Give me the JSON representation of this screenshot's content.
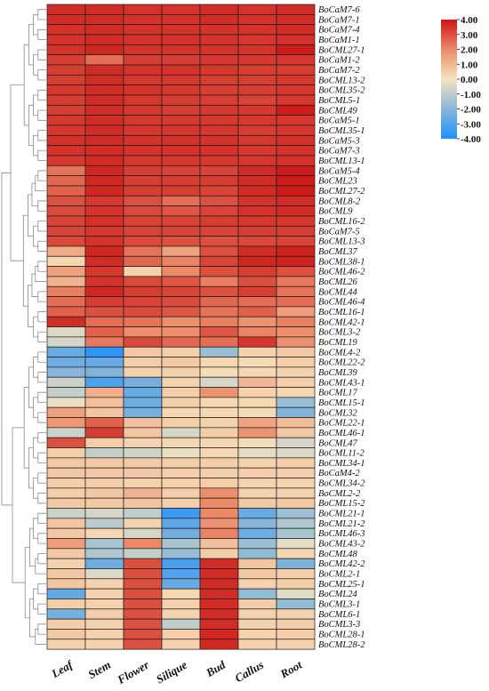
{
  "chart_data": {
    "type": "heatmap",
    "columns": [
      "Leaf",
      "Stem",
      "Flower",
      "Silique",
      "Bud",
      "Callus",
      "Root"
    ],
    "rows": [
      "BoCaM7-6",
      "BoCaM7-1",
      "BoCaM7-4",
      "BoCaM1-1",
      "BoCML27-1",
      "BoCaM1-2",
      "BoCaM7-2",
      "BoCML13-2",
      "BoCML35-2",
      "BoCML5-1",
      "BoCML49",
      "BoCaM5-1",
      "BoCML35-1",
      "BoCaM5-3",
      "BoCaM7-3",
      "BoCML13-1",
      "BoCaM5-4",
      "BoCML23",
      "BoCML27-2",
      "BoCML8-2",
      "BoCML9",
      "BoCML16-2",
      "BoCaM7-5",
      "BoCML13-3",
      "BoCML37",
      "BoCML38-1",
      "BoCML46-2",
      "BoCML26",
      "BoCML44",
      "BoCML46-4",
      "BoCML16-1",
      "BoCML42-1",
      "BoCML3-2",
      "BoCML19",
      "BoCML4-2",
      "BoCML22-2",
      "BoCML39",
      "BoCML43-1",
      "BoCML17",
      "BoCML15-1",
      "BoCML32",
      "BoCML22-1",
      "BoCML46-1",
      "BoCML47",
      "BoCML11-2",
      "BoCML34-1",
      "BoCaM4-2",
      "BoCML34-2",
      "BoCML2-2",
      "BoCML15-2",
      "BoCML21-1",
      "BoCML21-2",
      "BoCML46-3",
      "BoCML43-2",
      "BoCML48",
      "BoCML42-2",
      "BoCML2-1",
      "BoCML25-1",
      "BoCML24",
      "BoCML3-1",
      "BoCML6-1",
      "BoCML3-3",
      "BoCML28-1",
      "BoCML28-2"
    ],
    "values": [
      [
        3.6,
        3.6,
        3.5,
        3.5,
        3.6,
        3.5,
        3.6
      ],
      [
        3.6,
        3.6,
        3.5,
        3.5,
        3.6,
        3.5,
        3.6
      ],
      [
        3.5,
        3.6,
        3.5,
        3.5,
        3.5,
        3.5,
        3.6
      ],
      [
        3.5,
        3.6,
        3.5,
        3.5,
        3.5,
        3.4,
        3.5
      ],
      [
        3.5,
        3.7,
        3.5,
        3.5,
        3.5,
        3.5,
        3.9
      ],
      [
        3.3,
        2.5,
        3.3,
        3.3,
        3.4,
        3.4,
        3.4
      ],
      [
        3.3,
        3.6,
        3.5,
        3.5,
        3.4,
        3.3,
        3.3
      ],
      [
        3.3,
        3.6,
        3.4,
        3.4,
        3.3,
        3.3,
        3.4
      ],
      [
        3.4,
        3.6,
        3.5,
        3.4,
        3.3,
        3.3,
        3.4
      ],
      [
        3.3,
        3.6,
        3.4,
        3.3,
        3.3,
        3.2,
        3.4
      ],
      [
        3.3,
        3.6,
        3.4,
        3.3,
        3.4,
        3.4,
        3.9
      ],
      [
        3.4,
        3.6,
        3.4,
        3.4,
        3.4,
        3.4,
        3.4
      ],
      [
        3.4,
        3.6,
        3.4,
        3.4,
        3.4,
        3.3,
        3.4
      ],
      [
        3.5,
        3.6,
        3.5,
        3.5,
        3.5,
        3.4,
        3.5
      ],
      [
        3.5,
        3.6,
        3.5,
        3.5,
        3.5,
        3.4,
        3.5
      ],
      [
        3.4,
        3.6,
        3.4,
        3.4,
        3.4,
        3.4,
        3.5
      ],
      [
        2.4,
        3.7,
        3.3,
        3.2,
        3.2,
        3.6,
        3.9
      ],
      [
        2.6,
        3.7,
        3.3,
        3.3,
        3.3,
        3.6,
        3.9
      ],
      [
        2.7,
        3.7,
        3.3,
        3.3,
        3.2,
        3.6,
        3.9
      ],
      [
        3.0,
        3.4,
        3.0,
        2.5,
        3.0,
        3.5,
        3.6
      ],
      [
        3.1,
        3.5,
        3.1,
        2.9,
        3.2,
        3.5,
        3.6
      ],
      [
        3.2,
        3.5,
        3.2,
        3.2,
        3.3,
        3.4,
        3.4
      ],
      [
        3.2,
        3.4,
        3.2,
        3.2,
        3.2,
        3.3,
        3.3
      ],
      [
        3.1,
        3.5,
        3.1,
        3.0,
        3.0,
        3.1,
        3.2
      ],
      [
        1.3,
        3.7,
        2.4,
        1.5,
        3.0,
        3.6,
        3.8
      ],
      [
        0.3,
        3.6,
        2.6,
        2.1,
        3.2,
        3.7,
        3.8
      ],
      [
        1.5,
        3.4,
        0.4,
        2.0,
        3.0,
        3.3,
        3.0
      ],
      [
        1.1,
        3.5,
        3.1,
        2.9,
        2.2,
        3.0,
        2.3
      ],
      [
        2.2,
        3.7,
        3.3,
        3.2,
        3.0,
        3.3,
        2.4
      ],
      [
        2.5,
        3.3,
        3.2,
        3.1,
        2.6,
        2.5,
        2.5
      ],
      [
        2.7,
        3.0,
        3.1,
        2.9,
        2.4,
        2.7,
        1.6
      ],
      [
        3.6,
        2.5,
        2.4,
        1.9,
        2.2,
        1.8,
        2.2
      ],
      [
        -0.5,
        2.7,
        1.9,
        1.9,
        2.9,
        2.1,
        1.9
      ],
      [
        -0.6,
        2.3,
        3.1,
        2.6,
        2.5,
        3.4,
        1.9
      ],
      [
        -2.6,
        -3.7,
        0.6,
        0.5,
        -1.7,
        0.4,
        0.6
      ],
      [
        -2.5,
        -2.6,
        0.5,
        0.6,
        0.3,
        0.2,
        0.5
      ],
      [
        -2.0,
        -2.1,
        0.4,
        0.4,
        0.2,
        0.3,
        0.4
      ],
      [
        -0.8,
        -3.1,
        -2.3,
        0.4,
        -0.6,
        1.0,
        0.5
      ],
      [
        -0.9,
        1.2,
        -2.6,
        0.5,
        1.8,
        0.4,
        0.3
      ],
      [
        -0.2,
        0.8,
        -2.5,
        0.5,
        0.3,
        0.3,
        -1.7
      ],
      [
        1.5,
        0.7,
        -2.3,
        0.3,
        0.3,
        0.2,
        -2.1
      ],
      [
        1.7,
        2.7,
        0.8,
        0.5,
        0.4,
        1.4,
        0.9
      ],
      [
        -0.8,
        3.3,
        0.7,
        -0.6,
        0.5,
        1.8,
        0.6
      ],
      [
        3.0,
        0.5,
        0.4,
        0.3,
        0.3,
        0.2,
        -0.6
      ],
      [
        0.5,
        -0.9,
        -0.7,
        -0.2,
        0.3,
        -0.3,
        -0.5
      ],
      [
        0.6,
        0.6,
        0.6,
        0.5,
        0.5,
        0.4,
        0.5
      ],
      [
        0.6,
        0.6,
        0.6,
        0.5,
        0.5,
        0.5,
        0.5
      ],
      [
        0.5,
        0.5,
        0.4,
        0.4,
        0.5,
        0.4,
        0.4
      ],
      [
        0.5,
        0.6,
        1.1,
        0.5,
        1.9,
        0.4,
        0.4
      ],
      [
        0.6,
        0.6,
        0.7,
        0.5,
        2.0,
        0.6,
        0.6
      ],
      [
        -0.8,
        -0.6,
        -1.0,
        -3.4,
        2.0,
        -2.6,
        -1.6
      ],
      [
        0.7,
        -1.1,
        0.4,
        -2.8,
        1.8,
        -2.0,
        -1.3
      ],
      [
        0.6,
        0.3,
        -0.6,
        -2.4,
        2.1,
        -2.5,
        -1.4
      ],
      [
        1.6,
        -1.4,
        2.0,
        -1.4,
        0.8,
        -1.6,
        -0.3
      ],
      [
        0.6,
        -1.3,
        -0.9,
        -1.7,
        0.5,
        -1.8,
        0.3
      ],
      [
        0.4,
        -2.5,
        3.0,
        -3.2,
        3.6,
        0.7,
        -2.2
      ],
      [
        0.6,
        -0.5,
        3.0,
        -3.0,
        3.6,
        0.6,
        0.5
      ],
      [
        0.7,
        0.4,
        3.0,
        -2.6,
        3.6,
        0.4,
        0.5
      ],
      [
        -2.7,
        0.4,
        3.0,
        0.3,
        3.6,
        -1.8,
        -0.4
      ],
      [
        0.5,
        0.4,
        3.0,
        0.4,
        3.6,
        0.5,
        -1.8
      ],
      [
        -2.3,
        0.5,
        3.0,
        0.4,
        3.6,
        0.4,
        0.4
      ],
      [
        0.5,
        0.4,
        3.0,
        -1.0,
        3.6,
        0.4,
        0.5
      ],
      [
        0.6,
        0.4,
        3.0,
        0.5,
        3.7,
        0.4,
        0.5
      ],
      [
        0.4,
        0.4,
        3.0,
        0.4,
        3.7,
        0.4,
        0.4
      ]
    ],
    "color_scale": {
      "min": -4.0,
      "max": 4.0,
      "stops": [
        {
          "value": -4.0,
          "color": "#1e90ff"
        },
        {
          "value": -2.0,
          "color": "#87b6d8"
        },
        {
          "value": 0.0,
          "color": "#f6e4bf"
        },
        {
          "value": 2.0,
          "color": "#ec8a68"
        },
        {
          "value": 4.0,
          "color": "#cc1515"
        }
      ],
      "tick_labels": [
        "4.00",
        "3.00",
        "2.00",
        "1.00",
        "0.00",
        "-1.00",
        "-2.00",
        "-3.00",
        "-4.00"
      ]
    },
    "legend_position": "top-right",
    "row_dendrogram": true
  }
}
